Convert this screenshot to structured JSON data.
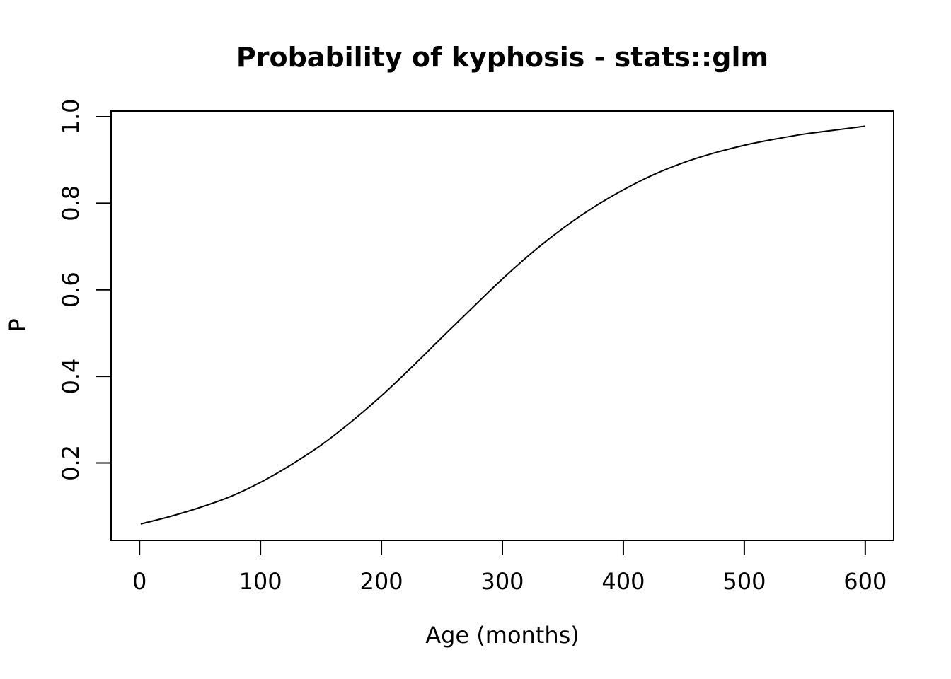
{
  "chart_data": {
    "type": "line",
    "title": "Probability of kyphosis - stats::glm",
    "xlabel": "Age (months)",
    "ylabel": "P",
    "xlim": [
      -23.5,
      623.5
    ],
    "ylim": [
      0.021,
      1.013
    ],
    "x_ticks": [
      0,
      100,
      200,
      300,
      400,
      500,
      600
    ],
    "y_ticks": [
      0.2,
      0.4,
      0.6,
      0.8,
      1.0
    ],
    "x_tick_labels": [
      "0",
      "100",
      "200",
      "300",
      "400",
      "500",
      "600"
    ],
    "y_tick_labels": [
      "0.2",
      "0.4",
      "0.6",
      "0.8",
      "1.0"
    ],
    "grid": false,
    "legend": "none",
    "colors": {
      "line": "#000000",
      "background": "#ffffff"
    },
    "series": [
      {
        "x": [
          1,
          25,
          50,
          75,
          100,
          125,
          150,
          175,
          200,
          225,
          250,
          275,
          300,
          325,
          350,
          375,
          400,
          425,
          450,
          475,
          500,
          525,
          550,
          575,
          600
        ],
        "y": [
          0.059,
          0.076,
          0.097,
          0.122,
          0.155,
          0.195,
          0.241,
          0.295,
          0.355,
          0.421,
          0.49,
          0.558,
          0.625,
          0.687,
          0.742,
          0.79,
          0.831,
          0.866,
          0.894,
          0.916,
          0.934,
          0.948,
          0.96,
          0.969,
          0.978
        ]
      }
    ]
  }
}
